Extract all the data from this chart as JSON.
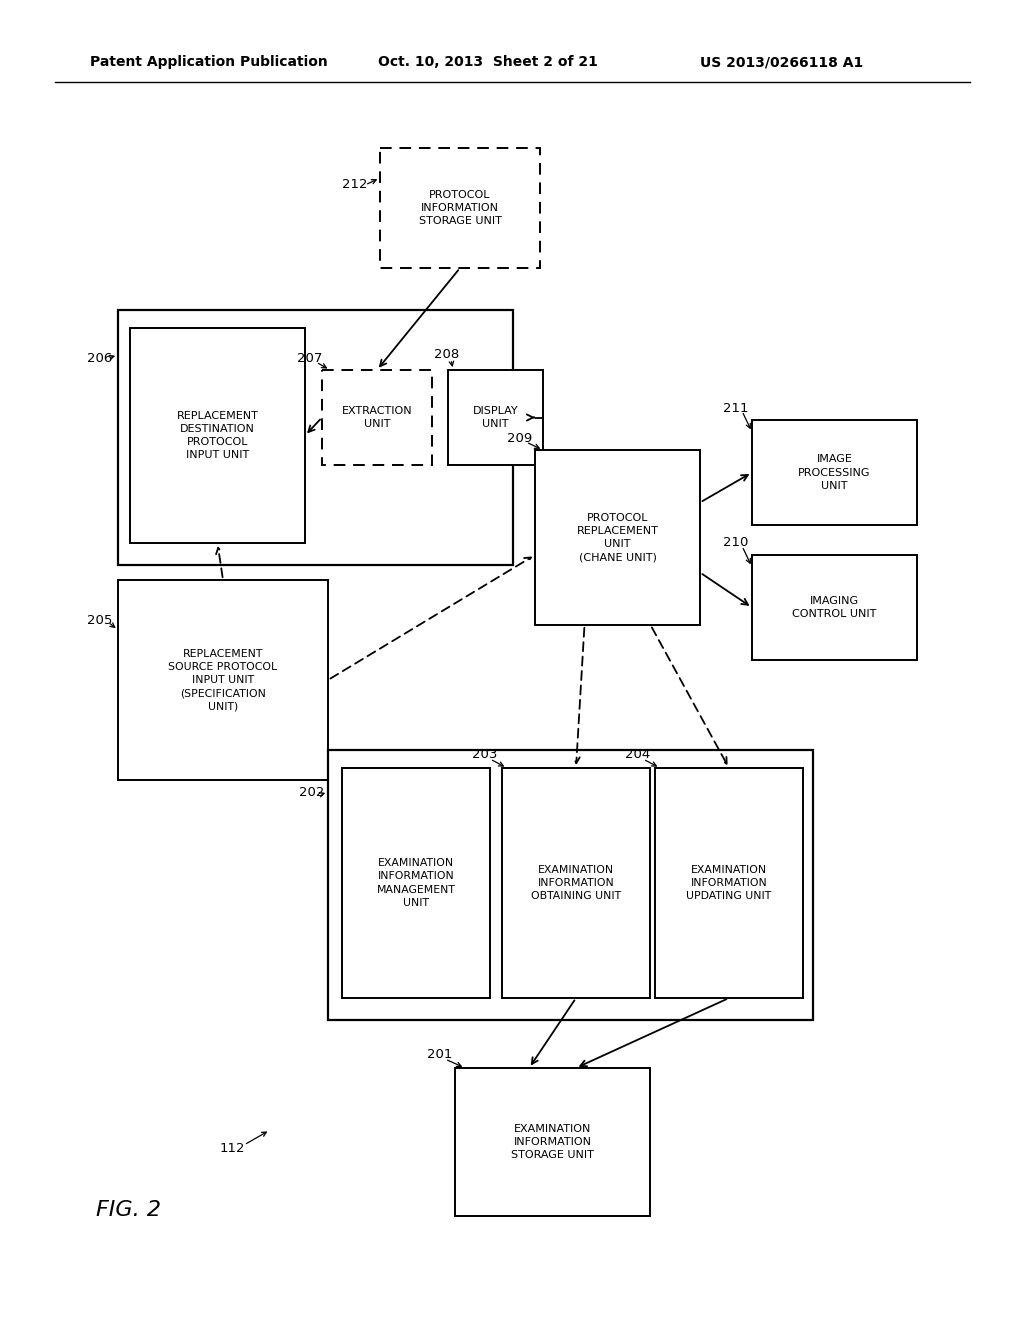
{
  "bg_color": "#ffffff",
  "header_left": "Patent Application Publication",
  "header_mid": "Oct. 10, 2013  Sheet 2 of 21",
  "header_right": "US 2013/0266118 A1",
  "figure_label": "FIG. 2"
}
